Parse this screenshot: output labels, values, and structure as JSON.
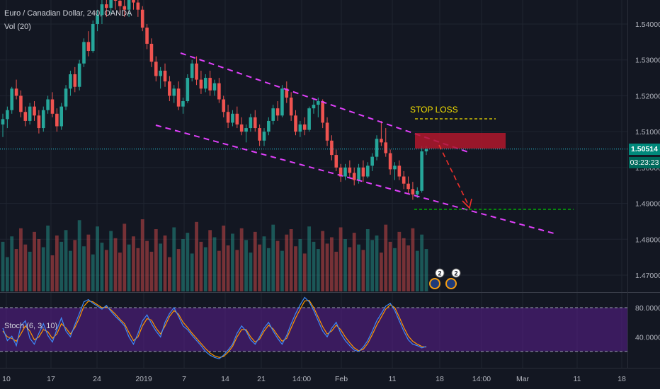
{
  "header": {
    "symbol_title": "Euro / Canadian Dollar, 240, OANDA",
    "volume_label": "Vol (20)",
    "stoch_label": "Stoch (6, 3, 10)"
  },
  "current_price": {
    "value": "1.50514",
    "countdown": "03:23:23"
  },
  "annotations": {
    "stop_loss": "STOP LOSS"
  },
  "event_badges": [
    {
      "count": "2"
    },
    {
      "count": "2"
    }
  ],
  "colors": {
    "background": "#131722",
    "up": "#26a69a",
    "down": "#ef5350",
    "channel": "#e040fb",
    "stop_loss_box": "#b2182b",
    "stop_loss_line": "#f5e100",
    "target_line": "#00c800",
    "arrow": "#f0302a",
    "stoch_k": "#3d8af7",
    "stoch_d": "#ff9800",
    "stoch_band": "#5b1f8f"
  },
  "chart_data": {
    "type": "candlestick",
    "title": "Euro / Canadian Dollar, 240, OANDA",
    "price_axis": {
      "ticks": [
        "1.54000",
        "1.53000",
        "1.52000",
        "1.51000",
        "1.50000",
        "1.49000",
        "1.48000",
        "1.47000"
      ],
      "range": [
        1.4635,
        1.5485
      ]
    },
    "time_axis": {
      "ticks": [
        "10",
        "17",
        "24",
        "2019",
        "7",
        "14",
        "21",
        "14:00",
        "Feb",
        "11",
        "18",
        "14:00",
        "Mar",
        "11",
        "18"
      ]
    },
    "stoch_axis": {
      "ticks": [
        "80.0000",
        "40.0000"
      ],
      "range": [
        0,
        100
      ],
      "bands": [
        80,
        20
      ]
    },
    "candles": [
      [
        1.512,
        1.515,
        1.5085,
        1.5135
      ],
      [
        1.5135,
        1.517,
        1.511,
        1.516
      ],
      [
        1.516,
        1.5225,
        1.515,
        1.522
      ],
      [
        1.522,
        1.5245,
        1.519,
        1.52
      ],
      [
        1.52,
        1.5215,
        1.514,
        1.5155
      ],
      [
        1.5155,
        1.517,
        1.5115,
        1.513
      ],
      [
        1.513,
        1.518,
        1.512,
        1.517
      ],
      [
        1.517,
        1.5185,
        1.513,
        1.5145
      ],
      [
        1.5145,
        1.516,
        1.5095,
        1.511
      ],
      [
        1.511,
        1.517,
        1.51,
        1.516
      ],
      [
        1.516,
        1.52,
        1.515,
        1.519
      ],
      [
        1.519,
        1.521,
        1.514,
        1.515
      ],
      [
        1.515,
        1.5165,
        1.51,
        1.5115
      ],
      [
        1.5115,
        1.518,
        1.5105,
        1.517
      ],
      [
        1.517,
        1.523,
        1.516,
        1.522
      ],
      [
        1.522,
        1.527,
        1.52,
        1.526
      ],
      [
        1.526,
        1.528,
        1.521,
        1.5225
      ],
      [
        1.5225,
        1.53,
        1.5215,
        1.529
      ],
      [
        1.529,
        1.536,
        1.528,
        1.535
      ],
      [
        1.535,
        1.538,
        1.531,
        1.5325
      ],
      [
        1.5325,
        1.541,
        1.532,
        1.54
      ],
      [
        1.54,
        1.544,
        1.538,
        1.5425
      ],
      [
        1.5425,
        1.547,
        1.54,
        1.5455
      ],
      [
        1.5455,
        1.548,
        1.542,
        1.5445
      ],
      [
        1.5445,
        1.5485,
        1.543,
        1.547
      ],
      [
        1.547,
        1.5485,
        1.544,
        1.5465
      ],
      [
        1.5465,
        1.5485,
        1.543,
        1.545
      ],
      [
        1.545,
        1.5485,
        1.542,
        1.544
      ],
      [
        1.544,
        1.5485,
        1.542,
        1.547
      ],
      [
        1.547,
        1.5485,
        1.544,
        1.546
      ],
      [
        1.546,
        1.5485,
        1.542,
        1.544
      ],
      [
        1.544,
        1.545,
        1.538,
        1.539
      ],
      [
        1.539,
        1.54,
        1.533,
        1.5345
      ],
      [
        1.5345,
        1.536,
        1.528,
        1.5295
      ],
      [
        1.5295,
        1.531,
        1.524,
        1.5255
      ],
      [
        1.5255,
        1.528,
        1.522,
        1.527
      ],
      [
        1.527,
        1.529,
        1.5225,
        1.524
      ],
      [
        1.524,
        1.5255,
        1.5185,
        1.52
      ],
      [
        1.52,
        1.523,
        1.518,
        1.522
      ],
      [
        1.522,
        1.524,
        1.516,
        1.517
      ],
      [
        1.517,
        1.5195,
        1.515,
        1.5185
      ],
      [
        1.5185,
        1.526,
        1.518,
        1.525
      ],
      [
        1.525,
        1.53,
        1.524,
        1.529
      ],
      [
        1.529,
        1.531,
        1.523,
        1.5245
      ],
      [
        1.5245,
        1.527,
        1.5205,
        1.522
      ],
      [
        1.522,
        1.526,
        1.521,
        1.525
      ],
      [
        1.525,
        1.527,
        1.52,
        1.5215
      ],
      [
        1.5215,
        1.5245,
        1.52,
        1.5235
      ],
      [
        1.5235,
        1.525,
        1.518,
        1.519
      ],
      [
        1.519,
        1.52,
        1.514,
        1.5155
      ],
      [
        1.5155,
        1.5175,
        1.511,
        1.5125
      ],
      [
        1.5125,
        1.516,
        1.5115,
        1.515
      ],
      [
        1.515,
        1.517,
        1.511,
        1.512
      ],
      [
        1.512,
        1.514,
        1.509,
        1.51
      ],
      [
        1.51,
        1.512,
        1.507,
        1.511
      ],
      [
        1.511,
        1.515,
        1.51,
        1.514
      ],
      [
        1.514,
        1.516,
        1.51,
        1.511
      ],
      [
        1.511,
        1.512,
        1.506,
        1.5075
      ],
      [
        1.5075,
        1.511,
        1.506,
        1.51
      ],
      [
        1.51,
        1.514,
        1.509,
        1.513
      ],
      [
        1.513,
        1.5175,
        1.512,
        1.5165
      ],
      [
        1.5165,
        1.5185,
        1.513,
        1.5145
      ],
      [
        1.5145,
        1.523,
        1.514,
        1.522
      ],
      [
        1.522,
        1.524,
        1.518,
        1.5195
      ],
      [
        1.5195,
        1.521,
        1.513,
        1.5145
      ],
      [
        1.5145,
        1.516,
        1.509,
        1.51
      ],
      [
        1.51,
        1.513,
        1.5085,
        1.512
      ],
      [
        1.512,
        1.514,
        1.509,
        1.5105
      ],
      [
        1.5105,
        1.517,
        1.51,
        1.5165
      ],
      [
        1.5165,
        1.519,
        1.515,
        1.5175
      ],
      [
        1.5175,
        1.5195,
        1.514,
        1.5185
      ],
      [
        1.5185,
        1.519,
        1.511,
        1.5125
      ],
      [
        1.5125,
        1.514,
        1.506,
        1.5075
      ],
      [
        1.5075,
        1.509,
        1.502,
        1.5035
      ],
      [
        1.5035,
        1.505,
        1.499,
        1.5
      ],
      [
        1.5,
        1.501,
        1.496,
        1.4975
      ],
      [
        1.4975,
        1.501,
        1.4965,
        1.5
      ],
      [
        1.5,
        1.502,
        1.497,
        1.4985
      ],
      [
        1.4985,
        1.5,
        1.495,
        1.4965
      ],
      [
        1.4965,
        1.501,
        1.4955,
        1.5
      ],
      [
        1.5,
        1.502,
        1.496,
        1.4975
      ],
      [
        1.4975,
        1.5015,
        1.497,
        1.5005
      ],
      [
        1.5005,
        1.504,
        1.499,
        1.503
      ],
      [
        1.503,
        1.509,
        1.502,
        1.508
      ],
      [
        1.508,
        1.513,
        1.506,
        1.507
      ],
      [
        1.507,
        1.511,
        1.503,
        1.504
      ],
      [
        1.504,
        1.505,
        1.498,
        1.4995
      ],
      [
        1.4995,
        1.5015,
        1.4965,
        1.5005
      ],
      [
        1.5005,
        1.502,
        1.4965,
        1.4975
      ],
      [
        1.4975,
        1.499,
        1.494,
        1.4955
      ],
      [
        1.4955,
        1.4975,
        1.4925,
        1.494
      ],
      [
        1.494,
        1.496,
        1.491,
        1.4925
      ],
      [
        1.4925,
        1.4945,
        1.4915,
        1.4935
      ],
      [
        1.4935,
        1.506,
        1.493,
        1.5045
      ],
      [
        1.5045,
        1.506,
        1.5035,
        1.5051
      ]
    ],
    "volumes": [
      55,
      38,
      61,
      47,
      70,
      52,
      44,
      66,
      58,
      49,
      73,
      40,
      62,
      55,
      68,
      45,
      57,
      79,
      50,
      63,
      41,
      72,
      54,
      46,
      67,
      59,
      43,
      75,
      52,
      61,
      48,
      80,
      56,
      44,
      69,
      53,
      62,
      38,
      71,
      47,
      58,
      65,
      42,
      77,
      55,
      49,
      68,
      60,
      45,
      73,
      51,
      64,
      46,
      70,
      57,
      43,
      66,
      52,
      61,
      48,
      74,
      56,
      45,
      63,
      69,
      50,
      58,
      42,
      72,
      55,
      47,
      67,
      53,
      60,
      44,
      71,
      58,
      49,
      65,
      52,
      46,
      69,
      57,
      62,
      43,
      74,
      55,
      48,
      66,
      59,
      51,
      70,
      45,
      63,
      47
    ],
    "stochastic": {
      "k": [
        52,
        35,
        41,
        28,
        55,
        62,
        38,
        30,
        45,
        58,
        42,
        33,
        50,
        66,
        48,
        40,
        57,
        72,
        88,
        91,
        86,
        82,
        78,
        83,
        75,
        68,
        62,
        55,
        40,
        30,
        45,
        62,
        70,
        58,
        48,
        40,
        60,
        72,
        80,
        68,
        55,
        50,
        42,
        35,
        28,
        20,
        15,
        12,
        10,
        15,
        22,
        30,
        45,
        55,
        48,
        36,
        30,
        40,
        52,
        60,
        48,
        38,
        30,
        42,
        58,
        72,
        84,
        94,
        88,
        76,
        62,
        48,
        40,
        52,
        60,
        45,
        35,
        28,
        22,
        20,
        26,
        35,
        48,
        62,
        72,
        82,
        86,
        76,
        62,
        48,
        36,
        30,
        28,
        25,
        27
      ],
      "d": [
        48,
        40,
        38,
        34,
        44,
        55,
        48,
        36,
        40,
        50,
        47,
        38,
        44,
        58,
        52,
        44,
        53,
        66,
        82,
        89,
        88,
        84,
        80,
        81,
        77,
        71,
        64,
        58,
        46,
        35,
        40,
        55,
        65,
        63,
        52,
        44,
        55,
        68,
        76,
        71,
        60,
        53,
        45,
        38,
        31,
        24,
        18,
        14,
        12,
        13,
        19,
        27,
        40,
        50,
        50,
        40,
        33,
        37,
        48,
        56,
        51,
        42,
        34,
        38,
        52,
        66,
        78,
        89,
        90,
        80,
        67,
        54,
        44,
        48,
        56,
        50,
        40,
        32,
        25,
        21,
        23,
        31,
        43,
        56,
        67,
        78,
        84,
        80,
        67,
        53,
        41,
        34,
        30,
        27,
        26
      ]
    }
  }
}
